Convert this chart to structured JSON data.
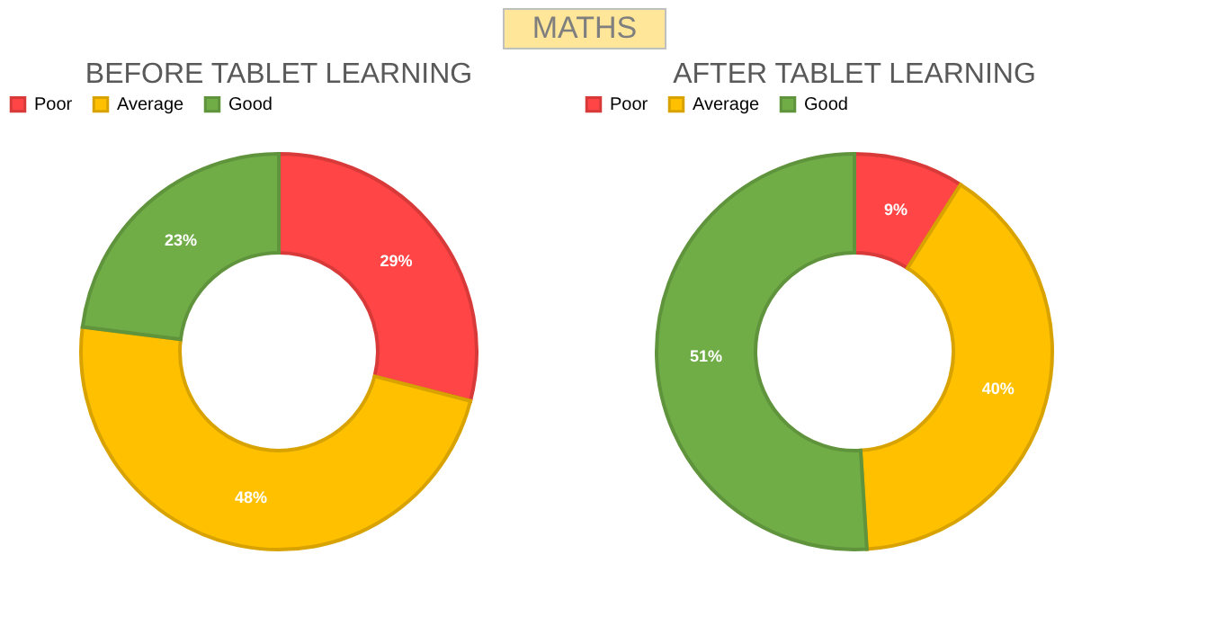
{
  "chart_data": [
    {
      "type": "other",
      "title": "MATHS"
    },
    {
      "type": "donut",
      "title": "BEFORE TABLET LEARNING",
      "categories": [
        "Poor",
        "Average",
        "Good"
      ],
      "values": [
        29,
        48,
        23
      ],
      "colors": [
        "#ff4545",
        "#ffc000",
        "#70ad47"
      ],
      "value_labels": [
        "29%",
        "48%",
        "23%"
      ],
      "legend": "top"
    },
    {
      "type": "donut",
      "title": "AFTER TABLET LEARNING",
      "categories": [
        "Poor",
        "Average",
        "Good"
      ],
      "values": [
        9,
        40,
        51
      ],
      "colors": [
        "#ff4545",
        "#ffc000",
        "#70ad47"
      ],
      "value_labels": [
        "9%",
        "40%",
        "51%"
      ],
      "legend": "top"
    }
  ]
}
